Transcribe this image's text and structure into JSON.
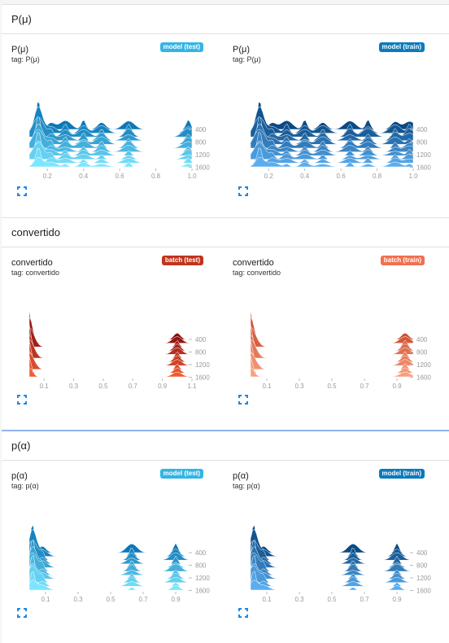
{
  "sections": [
    {
      "header": "P(μ)",
      "cards": [
        {
          "title": "P(μ)",
          "tag": "tag: P(μ)",
          "badge": "model (test)",
          "badge_color": "#33b5e5"
        },
        {
          "title": "P(μ)",
          "tag": "tag: P(μ)",
          "badge": "model (train)",
          "badge_color": "#0a7bbd"
        }
      ]
    },
    {
      "header": "convertido",
      "cards": [
        {
          "title": "convertido",
          "tag": "tag: convertido",
          "badge": "batch (test)",
          "badge_color": "#c0341d"
        },
        {
          "title": "convertido",
          "tag": "tag: convertido",
          "badge": "batch (train)",
          "badge_color": "#f07050"
        }
      ]
    },
    {
      "header": "p(α)",
      "cards": [
        {
          "title": "p(α)",
          "tag": "tag: p(α)",
          "badge": "model (test)",
          "badge_color": "#33b5e5"
        },
        {
          "title": "p(α)",
          "tag": "tag: p(α)",
          "badge": "model (train)",
          "badge_color": "#0a7bbd"
        }
      ]
    }
  ],
  "chart_data": [
    {
      "type": "area",
      "section": "P(μ)",
      "run": "model (test)",
      "x_ticks": [
        "0.2",
        "0.4",
        "0.6",
        "0.8",
        "1.0"
      ],
      "x_range": [
        0.1,
        1.0
      ],
      "y_ticks": [
        "400",
        "800",
        "1200",
        "1600"
      ],
      "peaks": [
        0.15,
        0.22,
        0.3,
        0.4,
        0.5,
        0.65,
        0.98
      ],
      "colors": {
        "back": "#0b78b8",
        "front": "#7be6ff"
      }
    },
    {
      "type": "area",
      "section": "P(μ)",
      "run": "model (train)",
      "x_ticks": [
        "0.2",
        "0.4",
        "0.6",
        "0.8",
        "1.0"
      ],
      "x_range": [
        0.1,
        1.0
      ],
      "y_ticks": [
        "400",
        "800",
        "1200",
        "1600"
      ],
      "peaks": [
        0.15,
        0.22,
        0.3,
        0.4,
        0.5,
        0.65,
        0.75,
        0.9,
        0.98
      ],
      "colors": {
        "back": "#0a4a86",
        "front": "#5aaef0"
      }
    },
    {
      "type": "area",
      "section": "convertido",
      "run": "batch (test)",
      "x_ticks": [
        "0.1",
        "0.3",
        "0.5",
        "0.7",
        "0.9",
        "1.1"
      ],
      "x_range": [
        0.0,
        1.1
      ],
      "y_ticks": [
        "400",
        "800",
        "1200",
        "1600"
      ],
      "peaks": [
        0.0,
        1.0
      ],
      "colors": {
        "back": "#8a1010",
        "front": "#f05a30"
      }
    },
    {
      "type": "area",
      "section": "convertido",
      "run": "batch (train)",
      "x_ticks": [
        "0.1",
        "0.3",
        "0.5",
        "0.7",
        "0.9"
      ],
      "x_range": [
        0.0,
        1.0
      ],
      "y_ticks": [
        "400",
        "800",
        "1200",
        "1600"
      ],
      "peaks": [
        0.0,
        0.95
      ],
      "colors": {
        "back": "#d05030",
        "front": "#f8a080"
      }
    },
    {
      "type": "area",
      "section": "p(α)",
      "run": "model (test)",
      "x_ticks": [
        "0.1",
        "0.3",
        "0.5",
        "0.7",
        "0.9"
      ],
      "x_range": [
        0.0,
        1.0
      ],
      "y_ticks": [
        "400",
        "800",
        "1200",
        "1600"
      ],
      "peaks": [
        0.02,
        0.08,
        0.63,
        0.9
      ],
      "colors": {
        "back": "#0b78b8",
        "front": "#7be6ff"
      }
    },
    {
      "type": "area",
      "section": "p(α)",
      "run": "model (train)",
      "x_ticks": [
        "0.1",
        "0.3",
        "0.5",
        "0.7",
        "0.9"
      ],
      "x_range": [
        0.0,
        1.0
      ],
      "y_ticks": [
        "400",
        "800",
        "1200",
        "1600"
      ],
      "peaks": [
        0.02,
        0.08,
        0.63,
        0.9
      ],
      "colors": {
        "back": "#0a4a86",
        "front": "#5aaef0"
      }
    }
  ]
}
